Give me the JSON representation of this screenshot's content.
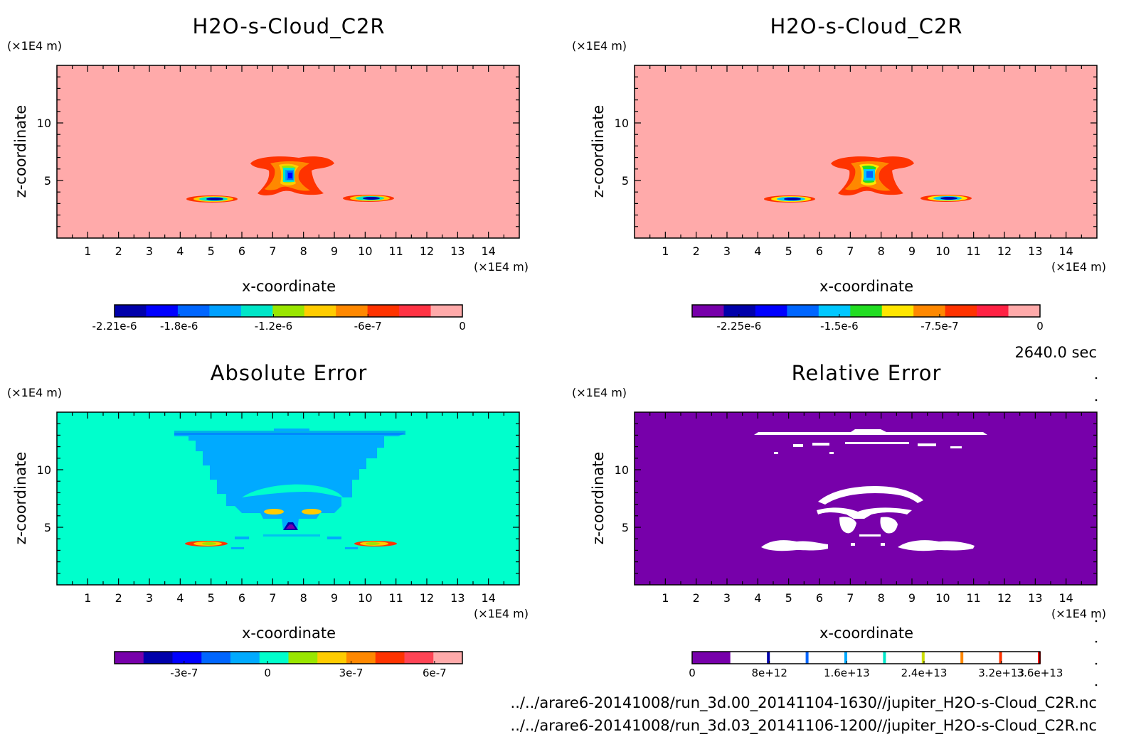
{
  "time_label": "2640.0 sec",
  "files": [
    "../../arare6-20141008/run_3d.00_20141104-1630//jupiter_H2O-s-Cloud_C2R.nc",
    "../../arare6-20141008/run_3d.03_20141106-1200//jupiter_H2O-s-Cloud_C2R.nc"
  ],
  "chart_data": [
    {
      "type": "heatmap",
      "title": "H2O-s-Cloud_C2R",
      "xlabel": "x-coordinate",
      "ylabel": "z-coordinate",
      "x_unit": "(×1E4 m)",
      "y_unit": "(×1E4 m)",
      "xlim": [
        0,
        15
      ],
      "ylim": [
        0,
        15
      ],
      "xticks": [
        "1",
        "2",
        "3",
        "4",
        "5",
        "6",
        "7",
        "8",
        "9",
        "10",
        "11",
        "12",
        "13",
        "14"
      ],
      "yticks": [
        "5",
        "10"
      ],
      "background_color": "#ffaaaa",
      "colorbar": {
        "colors": [
          "#0000aa",
          "#0000ff",
          "#0066ff",
          "#00a0ff",
          "#00e6c8",
          "#99e600",
          "#ffcc00",
          "#ff8800",
          "#ff3300",
          "#ff3344",
          "#ffaaaa"
        ],
        "tick_labels": [
          "-2.21e-6",
          "-1.8e-6",
          "-1.2e-6",
          "-6e-7",
          "0"
        ],
        "tick_values": [
          -2.21e-06,
          -1.8e-06,
          -1.2e-06,
          -6e-07,
          0
        ],
        "range": [
          -2.21e-06,
          0
        ]
      }
    },
    {
      "type": "heatmap",
      "title": "H2O-s-Cloud_C2R",
      "xlabel": "x-coordinate",
      "ylabel": "z-coordinate",
      "x_unit": "(×1E4 m)",
      "y_unit": "(×1E4 m)",
      "xlim": [
        0,
        15
      ],
      "ylim": [
        0,
        15
      ],
      "xticks": [
        "1",
        "2",
        "3",
        "4",
        "5",
        "6",
        "7",
        "8",
        "9",
        "10",
        "11",
        "12",
        "13",
        "14"
      ],
      "yticks": [
        "5",
        "10"
      ],
      "background_color": "#ffaaaa",
      "colorbar": {
        "colors": [
          "#7700aa",
          "#0000aa",
          "#0000ff",
          "#0066ff",
          "#00c8ff",
          "#22dd22",
          "#ffe600",
          "#ff8800",
          "#ff3300",
          "#ff2244",
          "#ffaaaa"
        ],
        "tick_labels": [
          "-2.25e-6",
          "-1.5e-6",
          "-7.5e-7",
          "0"
        ],
        "tick_values": [
          -2.25e-06,
          -1.5e-06,
          -7.5e-07,
          0
        ],
        "range": [
          -2.6e-06,
          0
        ]
      }
    },
    {
      "type": "heatmap",
      "title": "Absolute Error",
      "xlabel": "x-coordinate",
      "ylabel": "z-coordinate",
      "x_unit": "(×1E4 m)",
      "y_unit": "(×1E4 m)",
      "xlim": [
        0,
        15
      ],
      "ylim": [
        0,
        15
      ],
      "xticks": [
        "1",
        "2",
        "3",
        "4",
        "5",
        "6",
        "7",
        "8",
        "9",
        "10",
        "11",
        "12",
        "13",
        "14"
      ],
      "yticks": [
        "5",
        "10"
      ],
      "background_color": "#00ffcc",
      "colorbar": {
        "colors": [
          "#7700aa",
          "#0000aa",
          "#0000ff",
          "#0066ff",
          "#00aaff",
          "#00ffcc",
          "#99e600",
          "#ffcc00",
          "#ff8800",
          "#ff3300",
          "#ff4455",
          "#ffaaaa"
        ],
        "tick_labels": [
          "-3e-7",
          "0",
          "3e-7",
          "6e-7"
        ],
        "tick_values": [
          -3e-07,
          0,
          3e-07,
          6e-07
        ],
        "range": [
          -5.5e-07,
          7e-07
        ]
      }
    },
    {
      "type": "heatmap",
      "title": "Relative Error",
      "xlabel": "x-coordinate",
      "ylabel": "z-coordinate",
      "x_unit": "(×1E4 m)",
      "y_unit": "(×1E4 m)",
      "xlim": [
        0,
        15
      ],
      "ylim": [
        0,
        15
      ],
      "xticks": [
        "1",
        "2",
        "3",
        "4",
        "5",
        "6",
        "7",
        "8",
        "9",
        "10",
        "11",
        "12",
        "13",
        "14"
      ],
      "yticks": [
        "5",
        "10"
      ],
      "background_color": "#7700aa",
      "colorbar": {
        "colors": [
          "#7700aa",
          "#ffffff",
          "#0000aa",
          "#ffffff",
          "#0066ff",
          "#ffffff",
          "#00aaff",
          "#ffffff",
          "#00e6c8",
          "#ffffff",
          "#ccdd00",
          "#ffffff",
          "#ff8800",
          "#ffffff",
          "#ff3300",
          "#ffffff",
          "#ff0000"
        ],
        "tick_labels": [
          "0",
          "8e+12",
          "1.6e+13",
          "2.4e+13",
          "3.2e+13",
          "3.6e+13"
        ],
        "tick_values": [
          0,
          8000000000000.0,
          16000000000000.0,
          24000000000000.0,
          32000000000000.0,
          36000000000000.0
        ],
        "range": [
          0,
          36000000000000.0
        ]
      }
    }
  ]
}
